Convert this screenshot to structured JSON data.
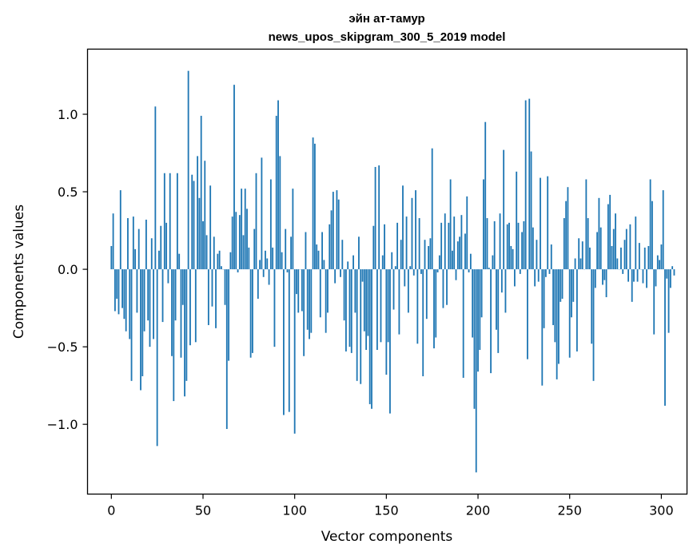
{
  "chart_data": {
    "type": "bar",
    "title": "эйн ат-тамур",
    "subtitle": "news_upos_skipgram_300_5_2019 model",
    "xlabel": "Vector components",
    "ylabel": "Components values",
    "xlim": [
      -13,
      314
    ],
    "ylim": [
      -1.45,
      1.42
    ],
    "xticks": [
      0,
      50,
      100,
      150,
      200,
      250,
      300
    ],
    "xtick_labels": [
      "0",
      "50",
      "100",
      "150",
      "200",
      "250",
      "300"
    ],
    "yticks": [
      -1.0,
      -0.5,
      0.0,
      0.5,
      1.0
    ],
    "ytick_labels": [
      "−1.0",
      "−0.5",
      "0.0",
      "0.5",
      "1.0"
    ],
    "grid": false,
    "bar_color": "#1f77b4",
    "series": [
      {
        "values": [
          0.15,
          0.36,
          -0.27,
          -0.19,
          -0.29,
          0.51,
          -0.25,
          -0.32,
          -0.4,
          0.33,
          -0.45,
          -0.72,
          0.34,
          0.13,
          -0.28,
          0.26,
          -0.78,
          -0.69,
          -0.4,
          0.32,
          -0.33,
          -0.5,
          0.2,
          -0.45,
          1.05,
          -1.14,
          0.12,
          0.28,
          -0.34,
          0.62,
          0.3,
          -0.09,
          0.62,
          -0.56,
          -0.85,
          -0.33,
          0.62,
          0.1,
          -0.57,
          -0.23,
          -0.82,
          -0.72,
          1.28,
          -0.49,
          0.61,
          0.57,
          -0.47,
          0.73,
          0.46,
          0.99,
          0.31,
          0.7,
          0.22,
          -0.36,
          0.54,
          -0.24,
          0.21,
          -0.38,
          0.1,
          0.12,
          0.02,
          0.0,
          -0.23,
          -1.03,
          -0.59,
          0.11,
          0.34,
          1.19,
          0.37,
          -0.02,
          0.35,
          0.52,
          0.22,
          0.52,
          0.39,
          0.14,
          -0.57,
          -0.54,
          0.26,
          0.62,
          -0.19,
          0.06,
          0.72,
          -0.05,
          0.12,
          0.07,
          -0.1,
          0.58,
          0.14,
          -0.5,
          0.99,
          1.09,
          0.73,
          0.11,
          -0.94,
          0.26,
          -0.02,
          -0.92,
          0.21,
          0.52,
          -1.06,
          -0.16,
          -0.28,
          0.0,
          -0.27,
          -0.56,
          0.24,
          -0.39,
          -0.45,
          -0.41,
          0.85,
          0.81,
          0.16,
          0.12,
          -0.31,
          0.24,
          0.06,
          -0.41,
          -0.28,
          0.29,
          0.38,
          0.5,
          -0.09,
          0.51,
          0.45,
          -0.05,
          0.19,
          -0.33,
          -0.53,
          0.05,
          -0.5,
          -0.54,
          0.09,
          -0.28,
          -0.72,
          0.21,
          -0.74,
          -0.08,
          -0.4,
          -0.52,
          -0.43,
          -0.87,
          -0.9,
          0.28,
          0.66,
          -0.52,
          0.67,
          -0.47,
          0.09,
          0.29,
          -0.68,
          -0.47,
          -0.93,
          0.11,
          -0.26,
          0.02,
          0.3,
          -0.42,
          0.19,
          0.54,
          -0.11,
          0.34,
          -0.28,
          0.02,
          0.46,
          -0.04,
          0.51,
          -0.48,
          0.33,
          -0.03,
          -0.69,
          0.19,
          -0.32,
          0.15,
          0.2,
          0.78,
          -0.51,
          -0.44,
          -0.02,
          0.09,
          0.3,
          -0.25,
          0.36,
          -0.23,
          0.3,
          0.58,
          0.12,
          0.34,
          -0.07,
          0.18,
          0.21,
          0.35,
          -0.7,
          0.23,
          0.47,
          -0.02,
          0.1,
          -0.44,
          -0.9,
          -1.31,
          -0.66,
          -0.52,
          -0.31,
          0.58,
          0.95,
          0.33,
          0.01,
          -0.67,
          0.09,
          0.31,
          -0.39,
          -0.54,
          0.36,
          -0.15,
          0.77,
          -0.28,
          0.29,
          0.3,
          0.15,
          0.13,
          -0.11,
          0.63,
          0.3,
          -0.03,
          0.24,
          0.31,
          1.09,
          -0.58,
          1.1,
          0.76,
          0.27,
          -0.11,
          0.19,
          -0.08,
          0.59,
          -0.75,
          -0.38,
          -0.05,
          0.6,
          -0.03,
          0.16,
          -0.36,
          -0.47,
          -0.71,
          -0.61,
          -0.21,
          -0.19,
          0.33,
          0.44,
          0.53,
          -0.57,
          -0.31,
          -0.21,
          0.07,
          -0.53,
          0.2,
          0.07,
          0.18,
          0.0,
          0.58,
          0.33,
          0.14,
          -0.48,
          -0.72,
          -0.12,
          0.24,
          0.46,
          0.27,
          -0.1,
          -0.07,
          -0.18,
          0.42,
          0.48,
          0.15,
          0.26,
          0.36,
          0.07,
          0.0,
          0.14,
          -0.03,
          0.19,
          0.26,
          -0.08,
          0.29,
          -0.21,
          -0.08,
          0.34,
          -0.08,
          0.17,
          0.0,
          -0.09,
          0.14,
          -0.12,
          0.15,
          0.58,
          0.44,
          -0.42,
          -0.11,
          0.09,
          0.06,
          0.16,
          0.51,
          -0.88,
          -0.06,
          -0.41,
          -0.12,
          0.02,
          -0.04
        ]
      }
    ]
  }
}
